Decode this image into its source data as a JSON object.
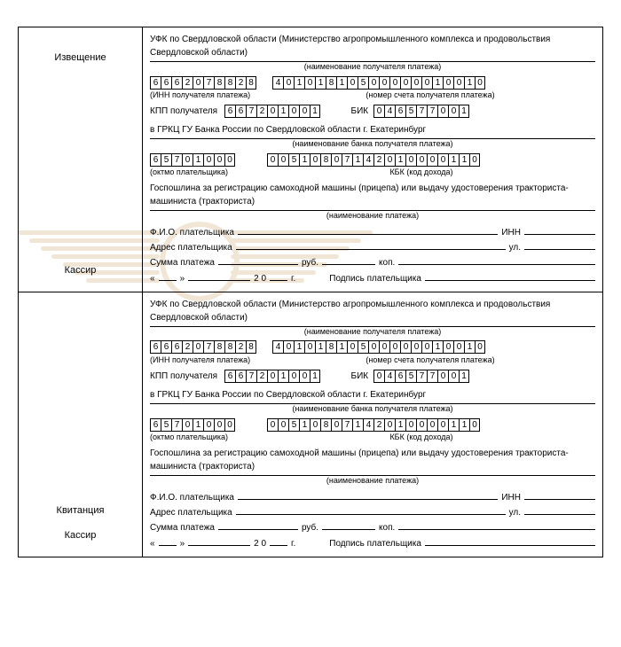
{
  "labels": {
    "notice": "Извещение",
    "cashier": "Кассир",
    "receipt": "Квитанция"
  },
  "recipient_name": "УФК по Свердловской области (Министерство агропромышленного комплекса и продовольствия Свердловской области)",
  "recipient_name_caption": "(наименование получателя платежа)",
  "inn": [
    "6",
    "6",
    "6",
    "2",
    "0",
    "7",
    "8",
    "8",
    "2",
    "8"
  ],
  "inn_caption": "(ИНН получателя платежа)",
  "account": [
    "4",
    "0",
    "1",
    "0",
    "1",
    "8",
    "1",
    "0",
    "5",
    "0",
    "0",
    "0",
    "0",
    "0",
    "0",
    "1",
    "0",
    "0",
    "1",
    "0"
  ],
  "account_caption": "(номер счета получателя платежа)",
  "kpp_label": "КПП получателя",
  "kpp": [
    "6",
    "6",
    "7",
    "2",
    "0",
    "1",
    "0",
    "0",
    "1"
  ],
  "bik_label": "БИК",
  "bik": [
    "0",
    "4",
    "6",
    "5",
    "7",
    "7",
    "0",
    "0",
    "1"
  ],
  "bank_name": "в ГРКЦ ГУ Банка России по Свердловской области г. Екатеринбург",
  "bank_name_caption": "(наименование банка получателя платежа)",
  "oktmo": [
    "6",
    "5",
    "7",
    "0",
    "1",
    "0",
    "0",
    "0"
  ],
  "oktmo_caption": "(октмо плательщика)",
  "kbk": [
    "0",
    "0",
    "5",
    "1",
    "0",
    "8",
    "0",
    "7",
    "1",
    "4",
    "2",
    "0",
    "1",
    "0",
    "0",
    "0",
    "0",
    "1",
    "1",
    "0"
  ],
  "kbk_caption": "КБК (код дохода)",
  "payment_name": "Госпошлина за регистрацию самоходной машины (прицепа) или выдачу удостоверения тракториста-машиниста (тракториста)",
  "payment_name_caption": "(наименование платежа)",
  "fio_label": "Ф.И.О. плательщика",
  "inn_label": "ИНН",
  "addr_label": "Адрес плательщика",
  "street_label": "ул.",
  "sum_label": "Сумма платежа",
  "rub_label": "руб.",
  "kop_label": "коп.",
  "year_prefix": "2 0",
  "year_suffix": "г.",
  "sign_label": "Подпись плательщика"
}
